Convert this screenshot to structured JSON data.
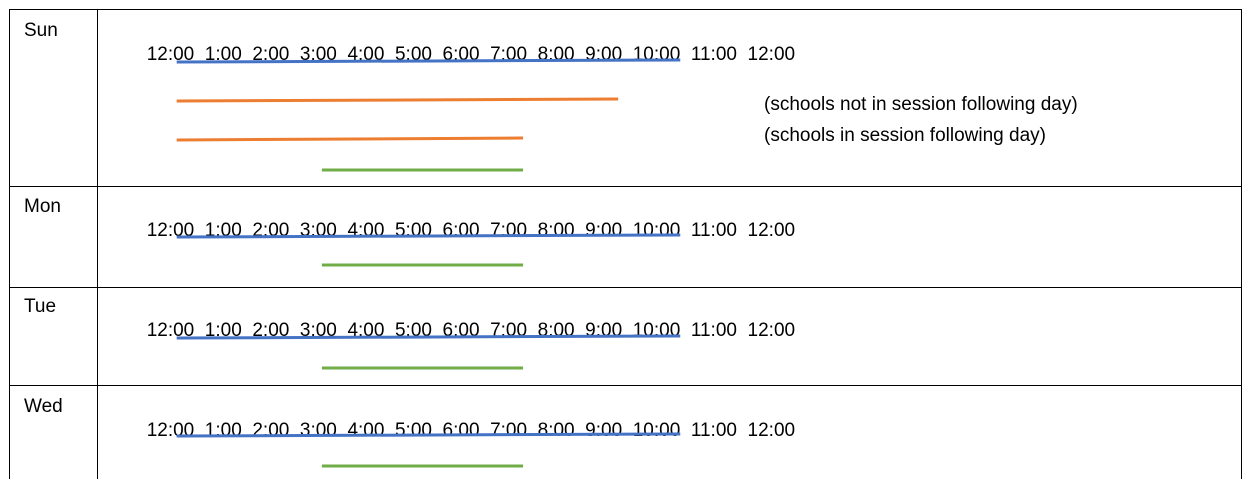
{
  "timeline_labels": [
    "12:00",
    "1:00",
    "2:00",
    "3:00",
    "4:00",
    "5:00",
    "6:00",
    "7:00",
    "8:00",
    "9:00",
    "10:00",
    "11:00",
    "12:00"
  ],
  "colors": {
    "blue": "#4472C4",
    "orange": "#ED7D31",
    "green": "#70AD47"
  },
  "rows": [
    {
      "day": "Sun",
      "notes": [
        "(schools not in session following day)",
        "(schools in session following day)"
      ],
      "bars": [
        {
          "color": "blue",
          "start": "12:00",
          "end": "10:00"
        },
        {
          "color": "orange",
          "start": "12:00",
          "end": "9:00",
          "note_index": 0
        },
        {
          "color": "orange",
          "start": "12:00",
          "end": "7:00",
          "note_index": 1
        },
        {
          "color": "green",
          "start": "3:00",
          "end": "7:00"
        }
      ]
    },
    {
      "day": "Mon",
      "notes": [],
      "bars": [
        {
          "color": "blue",
          "start": "12:00",
          "end": "10:00"
        },
        {
          "color": "green",
          "start": "3:00",
          "end": "7:00"
        }
      ]
    },
    {
      "day": "Tue",
      "notes": [],
      "bars": [
        {
          "color": "blue",
          "start": "12:00",
          "end": "10:00"
        },
        {
          "color": "green",
          "start": "3:00",
          "end": "7:00"
        }
      ]
    },
    {
      "day": "Wed",
      "notes": [],
      "bars": [
        {
          "color": "blue",
          "start": "12:00",
          "end": "10:00"
        },
        {
          "color": "green",
          "start": "3:00",
          "end": "7:00"
        }
      ]
    }
  ]
}
